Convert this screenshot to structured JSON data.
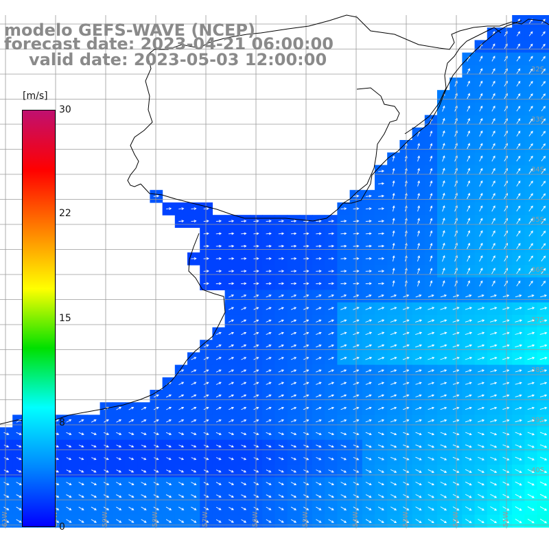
{
  "header": {
    "line1": "modelo GEFS-WAVE (NCEP)",
    "line2": "forecast date: 2023-04-21 06:00:00",
    "line3": "valid date: 2023-05-03 12:00:00"
  },
  "colorbar": {
    "unit": "[m/s]",
    "ticks": [
      "30",
      "22",
      "15",
      "8",
      "0"
    ],
    "stops": [
      "#0000ff",
      "#0088ff",
      "#00ffff",
      "#00e000",
      "#ffff00",
      "#ff8000",
      "#ff0000",
      "#c01070"
    ],
    "range": [
      0,
      30
    ]
  },
  "map": {
    "variable": "wind-speed-and-direction",
    "land_color": "#ffffff",
    "coastline_color": "#000000",
    "grid_color": "#9a9a9a",
    "lon_labels": [
      "61W",
      "60W",
      "59W",
      "58W",
      "57W",
      "56W",
      "55W",
      "54W",
      "53W",
      "52W",
      "51W"
    ],
    "lat_labels": [
      "32S",
      "33S",
      "34S",
      "35S",
      "36S",
      "37S",
      "38S",
      "39S",
      "40S"
    ]
  }
}
